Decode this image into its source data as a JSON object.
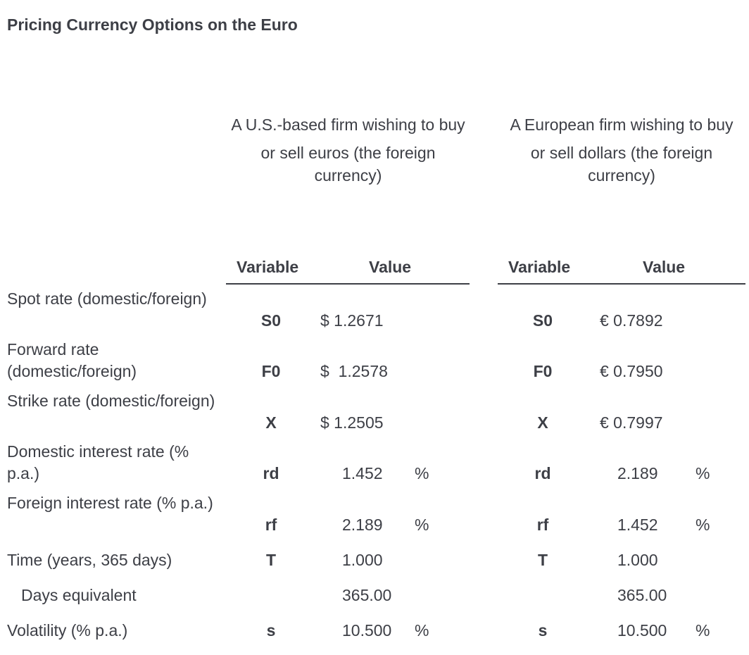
{
  "title": "Pricing Currency Options on the Euro",
  "columns": {
    "us": {
      "line1": "A U.S.-based firm wishing to buy",
      "line2": "or sell euros (the foreign currency)"
    },
    "eu": {
      "line1": "A European firm wishing to buy",
      "line2": "or sell dollars (the foreign currency)"
    }
  },
  "headers": {
    "variable": "Variable",
    "value": "Value"
  },
  "rows": [
    {
      "label": "Spot rate (domestic/foreign)",
      "us_var": "S0",
      "us_value": "$ 1.2671",
      "us_unit": "",
      "eu_var": "S0",
      "eu_value": "€ 0.7892",
      "eu_unit": ""
    },
    {
      "label": "Forward rate (domestic/foreign)",
      "us_var": "F0",
      "us_value": "$  1.2578",
      "us_unit": "",
      "eu_var": "F0",
      "eu_value": "€ 0.7950",
      "eu_unit": ""
    },
    {
      "label": "Strike rate (domestic/foreign)",
      "us_var": "X",
      "us_value": "$ 1.2505",
      "us_unit": "",
      "eu_var": "X",
      "eu_value": "€ 0.7997",
      "eu_unit": ""
    },
    {
      "label": "Domestic interest rate (% p.a.)",
      "us_var": "rd",
      "us_value": "1.452",
      "us_unit": "%",
      "eu_var": "rd",
      "eu_value": "2.189",
      "eu_unit": "%"
    },
    {
      "label": "Foreign interest rate (% p.a.)",
      "us_var": "rf",
      "us_value": "2.189",
      "us_unit": "%",
      "eu_var": "rf",
      "eu_value": "1.452",
      "eu_unit": "%"
    },
    {
      "label": "Time (years, 365 days)",
      "us_var": "T",
      "us_value": "1.000",
      "us_unit": "",
      "eu_var": "T",
      "eu_value": "1.000",
      "eu_unit": ""
    },
    {
      "label": "Days equivalent",
      "us_var": "",
      "us_value": "365.00",
      "us_unit": "",
      "eu_var": "",
      "eu_value": "365.00",
      "eu_unit": ""
    },
    {
      "label": "Volatility (% p.a.)",
      "us_var": "s",
      "us_value": "10.500",
      "us_unit": "%",
      "eu_var": "s",
      "eu_value": "10.500",
      "eu_unit": "%"
    }
  ]
}
